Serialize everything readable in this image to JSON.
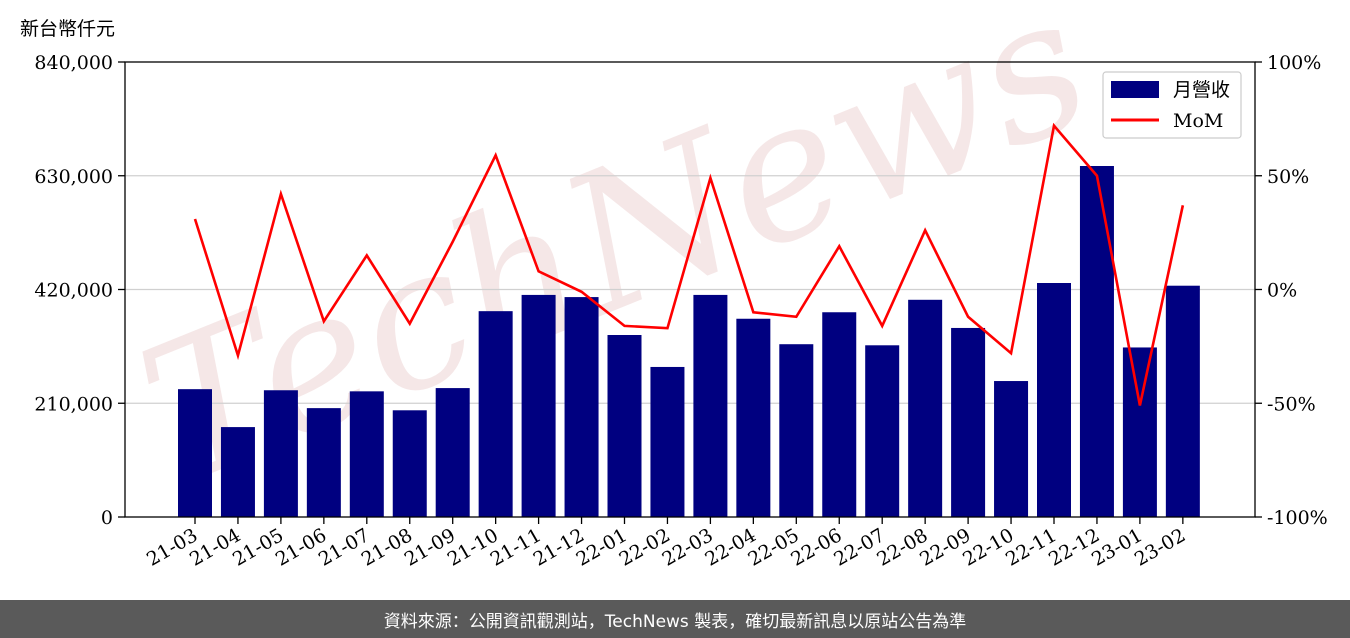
{
  "unit_label": "新台幣仟元",
  "footer_text": "資料來源：公開資訊觀測站，TechNews 製表，確切最新訊息以原站公告為準",
  "watermark": "TechNews",
  "colors": {
    "bar": "#000080",
    "line": "#ff0000",
    "grid": "#d0d0d0",
    "footer_bg": "#5a5a5a"
  },
  "chart_data": {
    "type": "bar",
    "categories": [
      "21-03",
      "21-04",
      "21-05",
      "21-06",
      "21-07",
      "21-08",
      "21-09",
      "21-10",
      "21-11",
      "21-12",
      "22-01",
      "22-02",
      "22-03",
      "22-04",
      "22-05",
      "22-06",
      "22-07",
      "22-08",
      "22-09",
      "22-10",
      "22-11",
      "22-12",
      "23-01",
      "23-02"
    ],
    "series": [
      {
        "name": "月營收",
        "type": "bar",
        "axis": "left",
        "values": [
          236000,
          166000,
          234000,
          201000,
          232000,
          197000,
          238000,
          380000,
          410000,
          406000,
          336000,
          277000,
          410000,
          366000,
          319000,
          378000,
          317000,
          401000,
          349000,
          251000,
          432000,
          648000,
          313000,
          427000
        ]
      },
      {
        "name": "MoM",
        "type": "line",
        "axis": "right",
        "values": [
          31,
          -29,
          42,
          -14,
          15,
          -15,
          21,
          59,
          8,
          -1,
          -16,
          -17,
          49,
          -10,
          -12,
          19,
          -16,
          26,
          -12,
          -28,
          72,
          50,
          -51,
          37
        ]
      }
    ],
    "y_left": {
      "ylim": [
        0,
        840000
      ],
      "ticks": [
        "0",
        "210,000",
        "420,000",
        "630,000",
        "840,000"
      ],
      "tick_values": [
        0,
        210000,
        420000,
        630000,
        840000
      ]
    },
    "y_right": {
      "ylim": [
        -100,
        100
      ],
      "ticks": [
        "-100%",
        "-50%",
        "0%",
        "50%",
        "100%"
      ],
      "tick_values": [
        -100,
        -50,
        0,
        50,
        100
      ]
    },
    "grid": true,
    "legend_position": "top-right"
  }
}
